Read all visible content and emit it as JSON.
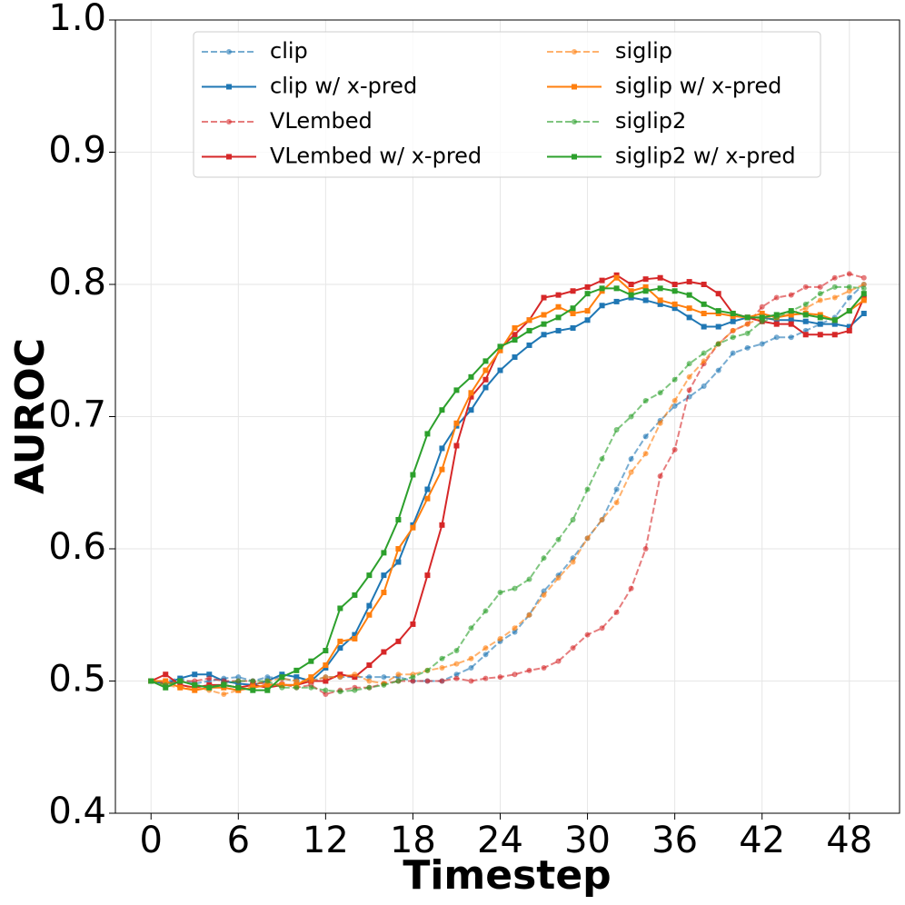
{
  "chart_data": {
    "type": "line",
    "xlabel": "Timestep",
    "ylabel": "AUROC",
    "x": [
      0,
      1,
      2,
      3,
      4,
      5,
      6,
      7,
      8,
      9,
      10,
      11,
      12,
      13,
      14,
      15,
      16,
      17,
      18,
      19,
      20,
      21,
      22,
      23,
      24,
      25,
      26,
      27,
      28,
      29,
      30,
      31,
      32,
      33,
      34,
      35,
      36,
      37,
      38,
      39,
      40,
      41,
      42,
      43,
      44,
      45,
      46,
      47,
      48,
      49
    ],
    "xlim": [
      -2.45,
      51.45
    ],
    "xticks": [
      0,
      6,
      12,
      18,
      24,
      30,
      36,
      42,
      48
    ],
    "ylim": [
      0.4,
      1.0
    ],
    "yticks": [
      0.4,
      0.5,
      0.6,
      0.7,
      0.8,
      0.9,
      {
        "value": 1,
        "label": "1.0"
      }
    ],
    "grid": true,
    "legend": "upper center",
    "series": [
      {
        "name": "clip",
        "color": "#1f77b4",
        "linestyle": "dashed",
        "marker": "o",
        "values": [
          0.5,
          0.5,
          0.502,
          0.498,
          0.5,
          0.502,
          0.503,
          0.5,
          0.503,
          0.502,
          0.5,
          0.5,
          0.503,
          0.503,
          0.503,
          0.503,
          0.503,
          0.503,
          0.5,
          0.5,
          0.5,
          0.505,
          0.51,
          0.52,
          0.53,
          0.537,
          0.55,
          0.568,
          0.58,
          0.593,
          0.608,
          0.622,
          0.645,
          0.668,
          0.685,
          0.697,
          0.708,
          0.715,
          0.723,
          0.735,
          0.748,
          0.752,
          0.755,
          0.76,
          0.76,
          0.765,
          0.77,
          0.775,
          0.79,
          0.8
        ]
      },
      {
        "name": "clip w/ x-pred",
        "color": "#1f77b4",
        "linestyle": "solid",
        "marker": "s",
        "values": [
          0.5,
          0.498,
          0.502,
          0.505,
          0.505,
          0.5,
          0.498,
          0.497,
          0.5,
          0.505,
          0.503,
          0.5,
          0.51,
          0.525,
          0.535,
          0.557,
          0.58,
          0.59,
          0.618,
          0.645,
          0.676,
          0.693,
          0.705,
          0.722,
          0.735,
          0.745,
          0.754,
          0.762,
          0.765,
          0.767,
          0.773,
          0.784,
          0.787,
          0.79,
          0.788,
          0.785,
          0.782,
          0.775,
          0.768,
          0.768,
          0.772,
          0.775,
          0.775,
          0.773,
          0.773,
          0.772,
          0.77,
          0.77,
          0.768,
          0.778
        ]
      },
      {
        "name": "VLembed",
        "color": "#d62728",
        "linestyle": "dashed",
        "marker": "o",
        "values": [
          0.5,
          0.498,
          0.5,
          0.5,
          0.502,
          0.5,
          0.5,
          0.5,
          0.497,
          0.498,
          0.495,
          0.497,
          0.49,
          0.493,
          0.495,
          0.495,
          0.498,
          0.5,
          0.5,
          0.5,
          0.5,
          0.502,
          0.5,
          0.502,
          0.503,
          0.505,
          0.508,
          0.51,
          0.515,
          0.525,
          0.535,
          0.54,
          0.552,
          0.57,
          0.6,
          0.655,
          0.675,
          0.72,
          0.74,
          0.755,
          0.765,
          0.77,
          0.783,
          0.79,
          0.792,
          0.798,
          0.798,
          0.805,
          0.808,
          0.805
        ]
      },
      {
        "name": "VLembed w/ x-pred",
        "color": "#d62728",
        "linestyle": "solid",
        "marker": "s",
        "values": [
          0.5,
          0.505,
          0.497,
          0.495,
          0.497,
          0.497,
          0.495,
          0.497,
          0.495,
          0.497,
          0.497,
          0.5,
          0.5,
          0.505,
          0.503,
          0.512,
          0.522,
          0.53,
          0.543,
          0.58,
          0.618,
          0.678,
          0.715,
          0.728,
          0.752,
          0.762,
          0.773,
          0.79,
          0.792,
          0.795,
          0.798,
          0.803,
          0.807,
          0.8,
          0.804,
          0.805,
          0.8,
          0.802,
          0.8,
          0.793,
          0.778,
          0.775,
          0.772,
          0.77,
          0.77,
          0.762,
          0.762,
          0.762,
          0.765,
          0.79
        ]
      },
      {
        "name": "siglip",
        "color": "#ff7f0e",
        "linestyle": "dashed",
        "marker": "o",
        "values": [
          0.5,
          0.497,
          0.495,
          0.495,
          0.493,
          0.49,
          0.493,
          0.497,
          0.5,
          0.502,
          0.5,
          0.5,
          0.503,
          0.503,
          0.505,
          0.5,
          0.498,
          0.505,
          0.505,
          0.508,
          0.51,
          0.513,
          0.517,
          0.525,
          0.532,
          0.54,
          0.55,
          0.565,
          0.578,
          0.59,
          0.608,
          0.622,
          0.635,
          0.658,
          0.672,
          0.695,
          0.712,
          0.73,
          0.742,
          0.755,
          0.765,
          0.77,
          0.775,
          0.775,
          0.778,
          0.782,
          0.788,
          0.79,
          0.795,
          0.8
        ]
      },
      {
        "name": "siglip w/ x-pred",
        "color": "#ff7f0e",
        "linestyle": "solid",
        "marker": "s",
        "values": [
          0.5,
          0.5,
          0.495,
          0.493,
          0.495,
          0.495,
          0.493,
          0.495,
          0.497,
          0.497,
          0.497,
          0.503,
          0.512,
          0.53,
          0.532,
          0.55,
          0.567,
          0.6,
          0.616,
          0.638,
          0.66,
          0.695,
          0.718,
          0.735,
          0.75,
          0.767,
          0.773,
          0.777,
          0.783,
          0.778,
          0.78,
          0.795,
          0.805,
          0.795,
          0.798,
          0.788,
          0.785,
          0.782,
          0.778,
          0.778,
          0.776,
          0.775,
          0.778,
          0.775,
          0.777,
          0.778,
          0.777,
          0.773,
          0.78,
          0.788
        ]
      },
      {
        "name": "siglip2",
        "color": "#2ca02c",
        "linestyle": "dashed",
        "marker": "o",
        "values": [
          0.5,
          0.497,
          0.5,
          0.497,
          0.495,
          0.498,
          0.5,
          0.5,
          0.5,
          0.495,
          0.495,
          0.495,
          0.493,
          0.492,
          0.493,
          0.495,
          0.497,
          0.5,
          0.503,
          0.508,
          0.517,
          0.523,
          0.54,
          0.553,
          0.567,
          0.57,
          0.577,
          0.593,
          0.607,
          0.622,
          0.645,
          0.668,
          0.69,
          0.7,
          0.712,
          0.718,
          0.728,
          0.74,
          0.748,
          0.755,
          0.76,
          0.763,
          0.772,
          0.775,
          0.78,
          0.785,
          0.793,
          0.798,
          0.798,
          0.797
        ]
      },
      {
        "name": "siglip2 w/ x-pred",
        "color": "#2ca02c",
        "linestyle": "solid",
        "marker": "s",
        "values": [
          0.5,
          0.495,
          0.5,
          0.497,
          0.495,
          0.497,
          0.495,
          0.493,
          0.493,
          0.503,
          0.508,
          0.515,
          0.523,
          0.555,
          0.565,
          0.58,
          0.597,
          0.622,
          0.656,
          0.687,
          0.705,
          0.72,
          0.73,
          0.742,
          0.753,
          0.758,
          0.765,
          0.77,
          0.775,
          0.782,
          0.793,
          0.797,
          0.797,
          0.792,
          0.795,
          0.797,
          0.795,
          0.792,
          0.785,
          0.78,
          0.778,
          0.775,
          0.775,
          0.777,
          0.78,
          0.777,
          0.775,
          0.773,
          0.78,
          0.793
        ]
      }
    ]
  }
}
